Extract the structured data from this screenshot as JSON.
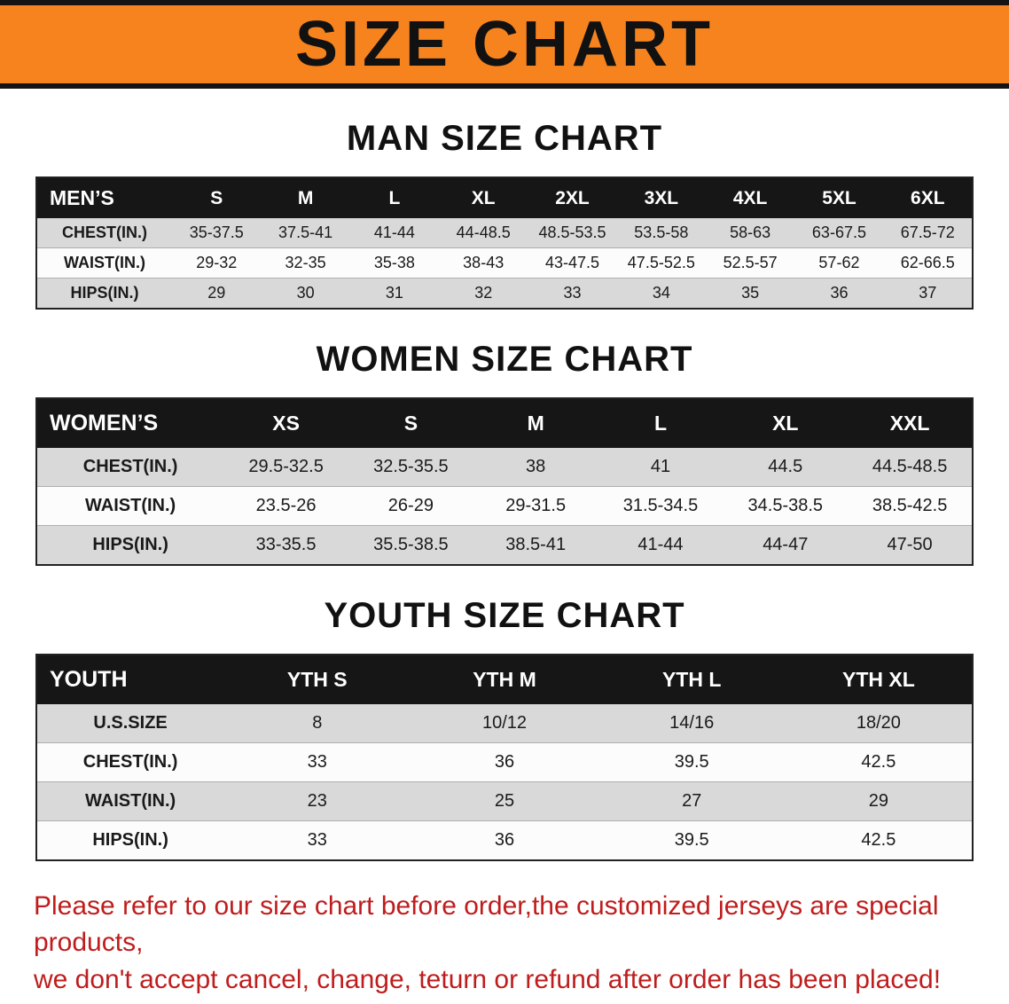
{
  "banner": {
    "title": "SIZE CHART"
  },
  "sections": [
    {
      "heading": "MAN SIZE CHART",
      "table": {
        "corner_label": "MEN’S",
        "columns": [
          "S",
          "M",
          "L",
          "XL",
          "2XL",
          "3XL",
          "4XL",
          "5XL",
          "6XL"
        ],
        "rows": [
          {
            "label": "CHEST(IN.)",
            "values": [
              "35-37.5",
              "37.5-41",
              "41-44",
              "44-48.5",
              "48.5-53.5",
              "53.5-58",
              "58-63",
              "63-67.5",
              "67.5-72"
            ]
          },
          {
            "label": "WAIST(IN.)",
            "values": [
              "29-32",
              "32-35",
              "35-38",
              "38-43",
              "43-47.5",
              "47.5-52.5",
              "52.5-57",
              "57-62",
              "62-66.5"
            ]
          },
          {
            "label": "HIPS(IN.)",
            "values": [
              "29",
              "30",
              "31",
              "32",
              "33",
              "34",
              "35",
              "36",
              "37"
            ]
          }
        ]
      }
    },
    {
      "heading": "WOMEN SIZE CHART",
      "table": {
        "corner_label": "WOMEN’S",
        "columns": [
          "XS",
          "S",
          "M",
          "L",
          "XL",
          "XXL"
        ],
        "rows": [
          {
            "label": "CHEST(IN.)",
            "values": [
              "29.5-32.5",
              "32.5-35.5",
              "38",
              "41",
              "44.5",
              "44.5-48.5"
            ]
          },
          {
            "label": "WAIST(IN.)",
            "values": [
              "23.5-26",
              "26-29",
              "29-31.5",
              "31.5-34.5",
              "34.5-38.5",
              "38.5-42.5"
            ]
          },
          {
            "label": "HIPS(IN.)",
            "values": [
              "33-35.5",
              "35.5-38.5",
              "38.5-41",
              "41-44",
              "44-47",
              "47-50"
            ]
          }
        ]
      }
    },
    {
      "heading": "YOUTH SIZE CHART",
      "table": {
        "corner_label": "YOUTH",
        "columns": [
          "YTH S",
          "YTH M",
          "YTH L",
          "YTH XL"
        ],
        "rows": [
          {
            "label": "U.S.SIZE",
            "values": [
              "8",
              "10/12",
              "14/16",
              "18/20"
            ]
          },
          {
            "label": "CHEST(IN.)",
            "values": [
              "33",
              "36",
              "39.5",
              "42.5"
            ]
          },
          {
            "label": "WAIST(IN.)",
            "values": [
              "23",
              "25",
              "27",
              "29"
            ]
          },
          {
            "label": "HIPS(IN.)",
            "values": [
              "33",
              "36",
              "39.5",
              "42.5"
            ]
          }
        ]
      }
    }
  ],
  "footer": {
    "line1": "Please refer to our size chart before order,the customized jerseys are special products,",
    "line2": "we don't accept cancel, change, teturn or refund after order has been placed!"
  },
  "colors": {
    "banner_bg": "#f6831e",
    "banner_stripe": "#141414",
    "header_bar": "#161616",
    "row_stripe": "#d9d9d9",
    "row_alt": "#fcfcfc",
    "disclaimer_text": "#bf1d1d",
    "ink": "#111111"
  }
}
